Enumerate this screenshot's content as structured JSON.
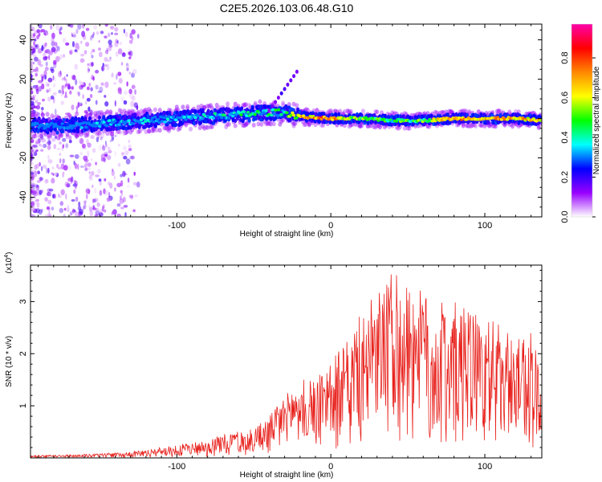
{
  "title": "C2E5.2026.103.06.48.G10",
  "chart_data": [
    {
      "type": "heatmap",
      "xlabel": "Height of straight line (km)",
      "ylabel": "Frequency (Hz)",
      "xlim": [
        -195,
        137
      ],
      "ylim": [
        -50,
        48
      ],
      "x_ticks": [
        -100,
        0,
        100
      ],
      "y_ticks": [
        -40,
        -20,
        0,
        20,
        40
      ],
      "colorbar": {
        "label": "Normalized spectral amplitude",
        "range": [
          0,
          0.97
        ],
        "ticks": [
          0.0,
          0.2,
          0.4,
          0.6,
          0.8
        ],
        "tick_labels": [
          "0.0",
          "0.2",
          "0.4",
          "0.6",
          "0.8"
        ],
        "colors": [
          "#ffffff",
          "#9900ff",
          "#0000ff",
          "#00ffff",
          "#00ff00",
          "#ffff00",
          "#ff8800",
          "#ff0000",
          "#ff00aa"
        ]
      },
      "ridge": {
        "x": [
          -195,
          -180,
          -160,
          -140,
          -120,
          -100,
          -80,
          -60,
          -40,
          -30,
          -20,
          0,
          20,
          40,
          60,
          80,
          100,
          120,
          137
        ],
        "freq": [
          -3,
          -4,
          -3,
          -2,
          -1,
          0,
          1,
          2,
          3,
          3,
          1,
          0,
          0,
          -1,
          -1,
          0,
          0,
          0,
          -1
        ],
        "amplitude": [
          0.3,
          0.35,
          0.35,
          0.4,
          0.4,
          0.4,
          0.45,
          0.5,
          0.5,
          0.55,
          0.75,
          0.85,
          0.6,
          0.55,
          0.6,
          0.85,
          0.8,
          0.8,
          0.75
        ]
      }
    },
    {
      "type": "line",
      "xlabel": "Height of straight line (km)",
      "ylabel": "SNR (10 * v/v)",
      "y_multiplier": "(x10",
      "y_multiplier_exponent": "4",
      "y_multiplier_suffix": ")",
      "xlim": [
        -195,
        137
      ],
      "ylim": [
        0,
        3.7
      ],
      "x_ticks": [
        -100,
        0,
        100
      ],
      "y_ticks": [
        1,
        2,
        3
      ],
      "series": [
        {
          "color": "#e8221d",
          "x": [
            -195,
            -170,
            -150,
            -130,
            -110,
            -90,
            -70,
            -50,
            -40,
            -30,
            -20,
            -10,
            0,
            10,
            20,
            30,
            40,
            50,
            60,
            70,
            80,
            90,
            100,
            110,
            120,
            130,
            137
          ],
          "envelope": [
            0.05,
            0.06,
            0.08,
            0.12,
            0.2,
            0.3,
            0.45,
            0.6,
            0.8,
            1.2,
            1.5,
            1.6,
            1.9,
            2.2,
            2.8,
            3.2,
            3.6,
            3.3,
            3.2,
            3.0,
            3.0,
            2.8,
            2.7,
            2.6,
            2.5,
            2.4,
            2.0
          ]
        }
      ]
    }
  ]
}
